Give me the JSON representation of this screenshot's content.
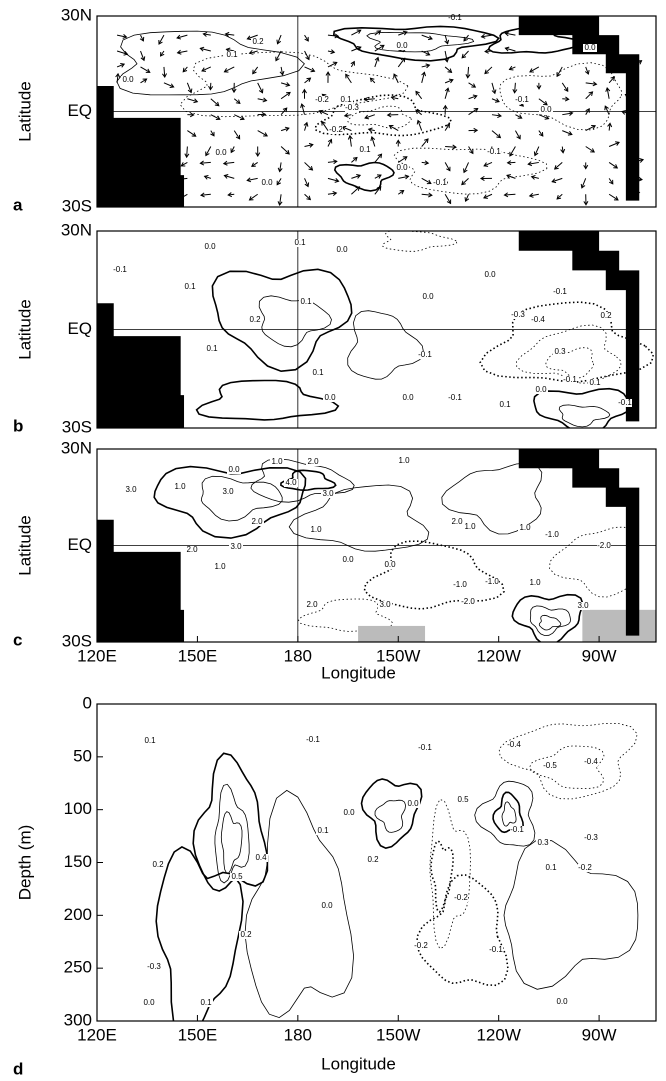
{
  "chart_data": [
    {
      "type": "contour",
      "panel_label": "a",
      "ylabel": "Latitude",
      "xlim": [
        120,
        287
      ],
      "ylim": [
        -30,
        30
      ],
      "yticks": [
        {
          "value": 30,
          "label": "30N"
        },
        {
          "value": 0,
          "label": "EQ"
        },
        {
          "value": -30,
          "label": "30S"
        }
      ],
      "vectors": true,
      "contour_labels": [
        "-0.1",
        "0.2",
        "0.1",
        "0.0",
        "0.0",
        "0.1",
        "-0.2",
        "-0.3",
        "-0.1",
        "0.0",
        "0.0",
        "-0.2",
        "0.1",
        "0.0",
        "-0.1",
        "-0.1",
        "0.0",
        "0.0"
      ]
    },
    {
      "type": "contour",
      "panel_label": "b",
      "ylabel": "Latitude",
      "xlim": [
        120,
        287
      ],
      "ylim": [
        -30,
        30
      ],
      "yticks": [
        {
          "value": 30,
          "label": "30N"
        },
        {
          "value": 0,
          "label": "EQ"
        },
        {
          "value": -30,
          "label": "30S"
        }
      ],
      "contour_labels": [
        "0.0",
        "0.1",
        "0.0",
        "-0.1",
        "0.1",
        "0.1",
        "0.2",
        "0.0",
        "0.0",
        "-0.1",
        "-0.3",
        "-0.4",
        "0.2",
        "0.1",
        "-0.1",
        "0.3",
        "0.1",
        "0.0",
        "0.0",
        "-0.1",
        "-0.1",
        "0.0",
        "0.1",
        "0.1",
        "-0.1"
      ]
    },
    {
      "type": "contour",
      "panel_label": "c",
      "ylabel": "Latitude",
      "xlabel": "Longitude",
      "xlim": [
        120,
        287
      ],
      "ylim": [
        -30,
        30
      ],
      "xticks": [
        {
          "value": 120,
          "label": "120E"
        },
        {
          "value": 150,
          "label": "150E"
        },
        180,
        {
          "value": 210,
          "label": "150W"
        },
        {
          "value": 240,
          "label": "120W"
        },
        {
          "value": 270,
          "label": "90W"
        }
      ],
      "yticks": [
        {
          "value": 30,
          "label": "30N"
        },
        {
          "value": 0,
          "label": "EQ"
        },
        {
          "value": -30,
          "label": "30S"
        }
      ],
      "shading": true,
      "contour_labels": [
        "0.0",
        "1.0",
        "2.0",
        "1.0",
        "3.0",
        "3.0",
        "4.0",
        "3.0",
        "2.0",
        "3.0",
        "1.0",
        "2.0",
        "1.0",
        "0.0",
        "0.0",
        "1.0",
        "2.0",
        "1.0",
        "1.0",
        "-1.0",
        "-2.0",
        "-1.0",
        "-2.0",
        "2.0",
        "3.0",
        "-1.0",
        "1.0",
        "3.0"
      ]
    },
    {
      "type": "contour",
      "panel_label": "d",
      "ylabel": "Depth (m)",
      "xlabel": "Longitude",
      "xlim": [
        120,
        287
      ],
      "ylim": [
        0,
        300
      ],
      "invert_y": true,
      "xticks": [
        {
          "value": 120,
          "label": "120E"
        },
        {
          "value": 150,
          "label": "150E"
        },
        180,
        {
          "value": 210,
          "label": "150W"
        },
        {
          "value": 240,
          "label": "120W"
        },
        {
          "value": 270,
          "label": "90W"
        }
      ],
      "yticks": [
        0,
        50,
        100,
        150,
        200,
        250,
        300
      ],
      "contour_labels": [
        "0.1",
        "-0.1",
        "-0.1",
        "-0.4",
        "-0.5",
        "-0.4",
        "0.0",
        "0.0",
        "0.5",
        "-0.1",
        "-0.3",
        "-0.2",
        "0.2",
        "0.4",
        "0.5",
        "0.1",
        "0.2",
        "0.0",
        "0.3",
        "0.1",
        "-0.2",
        "-0.2",
        "-0.3",
        "0.2",
        "-0.1",
        "0.0",
        "0.1",
        "0.0"
      ]
    }
  ]
}
